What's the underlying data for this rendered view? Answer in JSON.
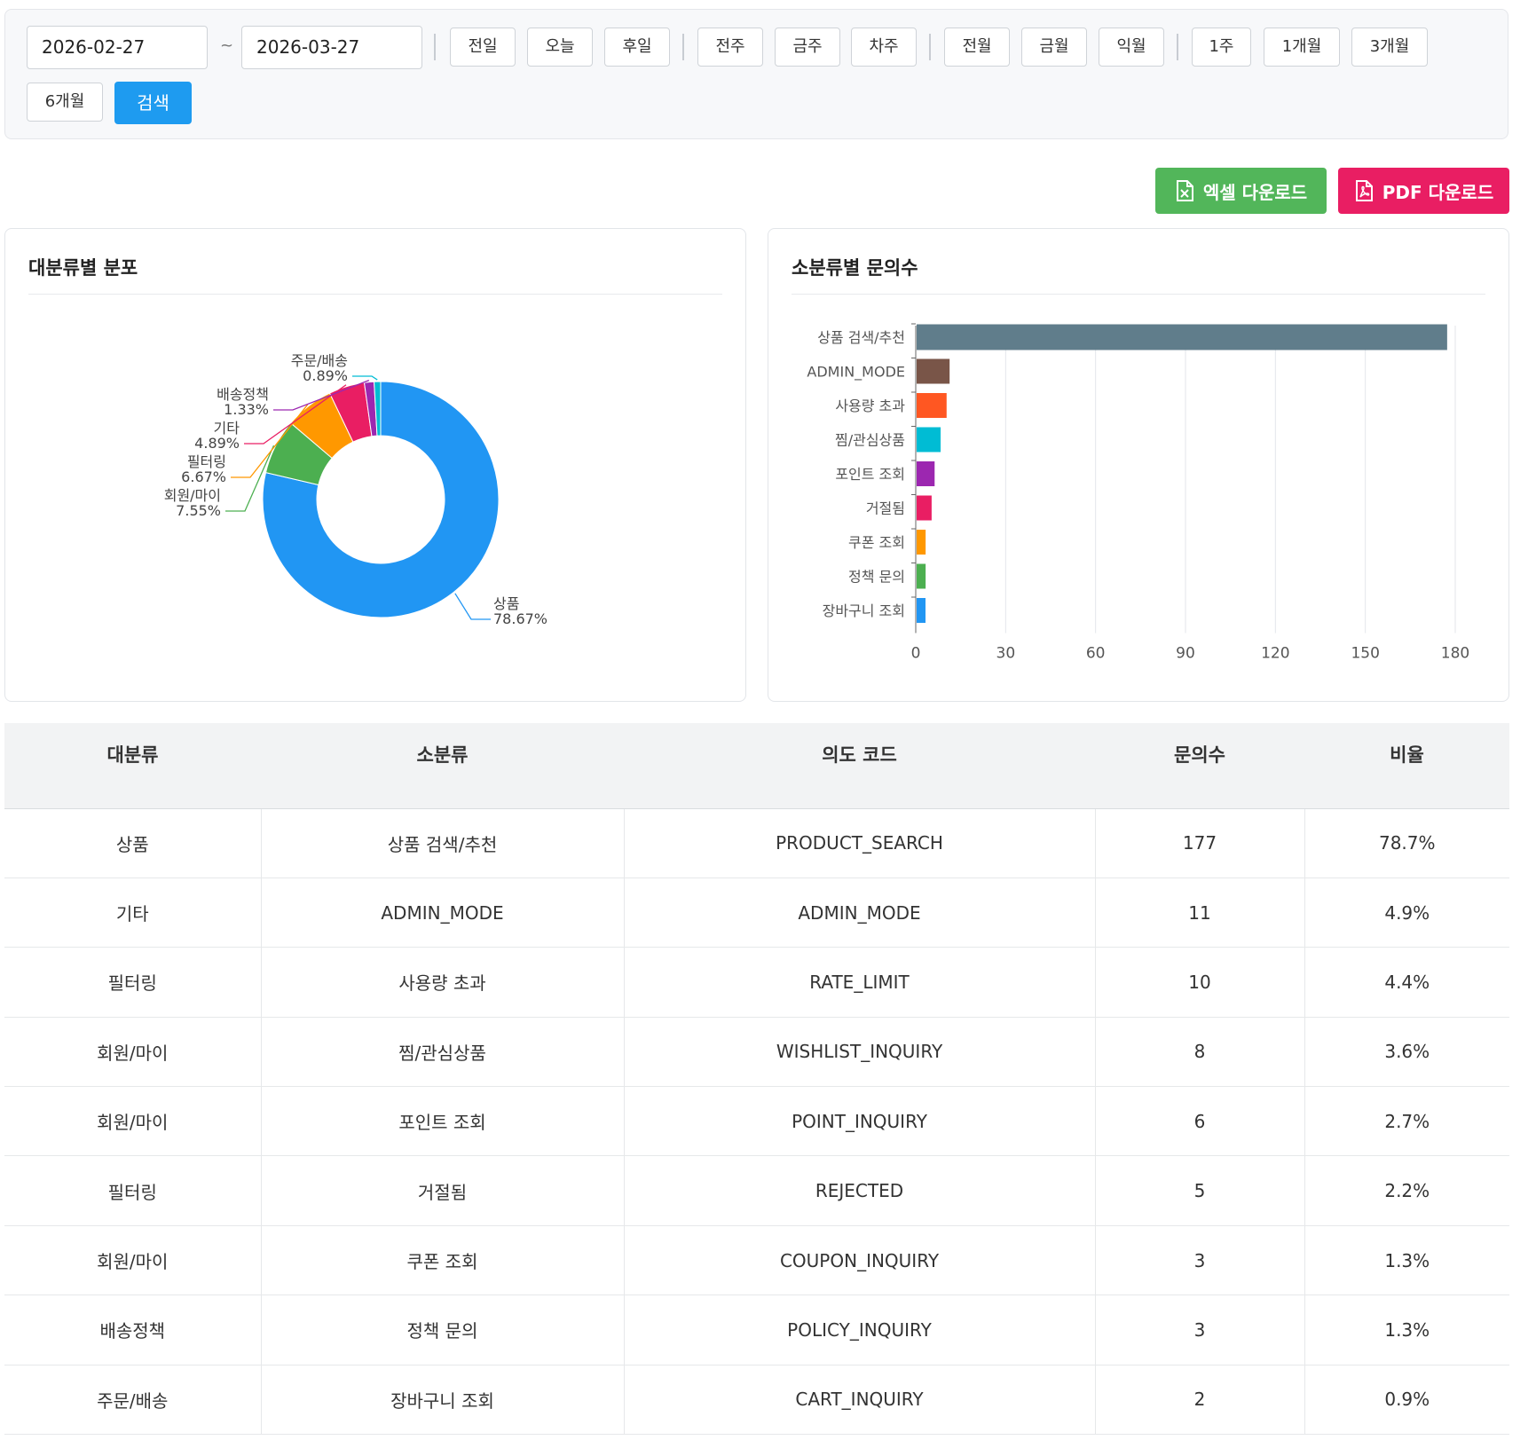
{
  "filter": {
    "start_date": "2026-02-27",
    "tilde": "~",
    "end_date": "2026-03-27",
    "quick_buttons": {
      "prev_day": "전일",
      "today": "오늘",
      "next_day": "후일",
      "prev_week": "전주",
      "this_week": "금주",
      "next_week": "차주",
      "prev_month": "전월",
      "this_month": "금월",
      "next_month": "익월",
      "w1": "1주",
      "m1": "1개월",
      "m3": "3개월",
      "m6": "6개월"
    },
    "search_label": "검색"
  },
  "downloads": {
    "excel_label": "엑셀 다운로드",
    "pdf_label": "PDF 다운로드"
  },
  "cards": {
    "left_title": "대분류별 분포",
    "right_title": "소분류별 문의수"
  },
  "colors": {
    "accent": "#1e9bf0",
    "excel": "#52b65a",
    "pdf": "#e91e63"
  },
  "chart_data": [
    {
      "type": "pie",
      "title": "대분류별 분포",
      "donut": true,
      "slices": [
        {
          "name": "상품",
          "label": "78.67%",
          "value": 78.67,
          "color": "#2196f3"
        },
        {
          "name": "회원/마이",
          "label": "7.55%",
          "value": 7.55,
          "color": "#4caf50"
        },
        {
          "name": "필터링",
          "label": "6.67%",
          "value": 6.67,
          "color": "#ff9800"
        },
        {
          "name": "기타",
          "label": "4.89%",
          "value": 4.89,
          "color": "#e91e63"
        },
        {
          "name": "배송정책",
          "label": "1.33%",
          "value": 1.33,
          "color": "#9c27b0"
        },
        {
          "name": "주문/배송",
          "label": "0.89%",
          "value": 0.89,
          "color": "#00bcd4"
        }
      ]
    },
    {
      "type": "bar",
      "orientation": "horizontal",
      "title": "소분류별 문의수",
      "categories": [
        "상품 검색/추천",
        "ADMIN_MODE",
        "사용량 초과",
        "찜/관심상품",
        "포인트 조회",
        "거절됨",
        "쿠폰 조회",
        "정책 문의",
        "장바구니 조회"
      ],
      "values": [
        177,
        11,
        10,
        8,
        6,
        5,
        3,
        3,
        2
      ],
      "colors": [
        "#607d8b",
        "#795548",
        "#ff5722",
        "#00bcd4",
        "#9c27b0",
        "#e91e63",
        "#ff9800",
        "#4caf50",
        "#2196f3"
      ],
      "xlim": [
        0,
        180
      ],
      "xticks": [
        "0",
        "30",
        "60",
        "90",
        "120",
        "150",
        "180"
      ],
      "grid": true
    }
  ],
  "table": {
    "headers": [
      "대분류",
      "소분류",
      "의도 코드",
      "문의수",
      "비율"
    ],
    "rows": [
      [
        "상품",
        "상품 검색/추천",
        "PRODUCT_SEARCH",
        "177",
        "78.7%"
      ],
      [
        "기타",
        "ADMIN_MODE",
        "ADMIN_MODE",
        "11",
        "4.9%"
      ],
      [
        "필터링",
        "사용량 초과",
        "RATE_LIMIT",
        "10",
        "4.4%"
      ],
      [
        "회원/마이",
        "찜/관심상품",
        "WISHLIST_INQUIRY",
        "8",
        "3.6%"
      ],
      [
        "회원/마이",
        "포인트 조회",
        "POINT_INQUIRY",
        "6",
        "2.7%"
      ],
      [
        "필터링",
        "거절됨",
        "REJECTED",
        "5",
        "2.2%"
      ],
      [
        "회원/마이",
        "쿠폰 조회",
        "COUPON_INQUIRY",
        "3",
        "1.3%"
      ],
      [
        "배송정책",
        "정책 문의",
        "POLICY_INQUIRY",
        "3",
        "1.3%"
      ],
      [
        "주문/배송",
        "장바구니 조회",
        "CART_INQUIRY",
        "2",
        "0.9%"
      ]
    ]
  }
}
